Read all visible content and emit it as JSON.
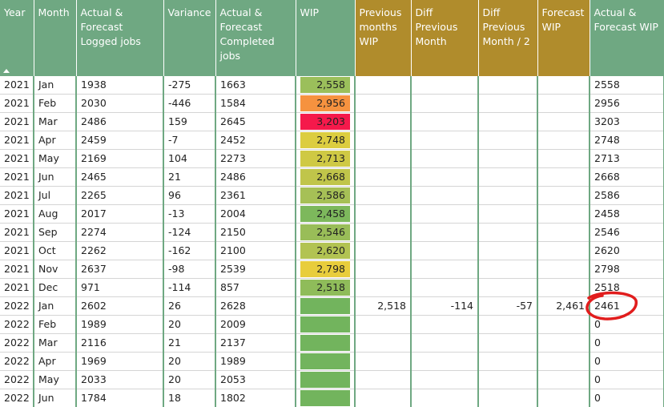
{
  "columns": [
    {
      "key": "year",
      "label": "Year",
      "group": "green"
    },
    {
      "key": "month",
      "label": "Month",
      "group": "green"
    },
    {
      "key": "logged",
      "label": "Actual & Forecast Logged jobs",
      "group": "green"
    },
    {
      "key": "variance",
      "label": "Variance",
      "group": "green"
    },
    {
      "key": "completed",
      "label": "Actual & Forecast Completed jobs",
      "group": "green"
    },
    {
      "key": "wip",
      "label": "WIP",
      "group": "green"
    },
    {
      "key": "prev_wip",
      "label": "Previous months WIP",
      "group": "gold"
    },
    {
      "key": "diff_prev",
      "label": "Diff Previous Month",
      "group": "gold"
    },
    {
      "key": "diff_prev_half",
      "label": "Diff Previous Month / 2",
      "group": "gold"
    },
    {
      "key": "forecast_wip",
      "label": "Forecast WIP",
      "group": "gold"
    },
    {
      "key": "act_fc_wip",
      "label": "Actual & Forecast WIP",
      "group": "green"
    }
  ],
  "colors": {
    "header_green": "#6fa882",
    "header_gold": "#b08c2c",
    "annotation_red": "#e11d1d"
  },
  "rows": [
    {
      "year": "2021",
      "month": "Jan",
      "logged": "1938",
      "variance": "-275",
      "completed": "1663",
      "wip": "2,558",
      "wip_color": "#9bbf5b",
      "prev_wip": "",
      "diff_prev": "",
      "diff_prev_half": "",
      "forecast_wip": "",
      "act_fc_wip": "2558"
    },
    {
      "year": "2021",
      "month": "Feb",
      "logged": "2030",
      "variance": "-446",
      "completed": "1584",
      "wip": "2,956",
      "wip_color": "#f6923f",
      "prev_wip": "",
      "diff_prev": "",
      "diff_prev_half": "",
      "forecast_wip": "",
      "act_fc_wip": "2956"
    },
    {
      "year": "2021",
      "month": "Mar",
      "logged": "2486",
      "variance": "159",
      "completed": "2645",
      "wip": "3,203",
      "wip_color": "#f5194b",
      "prev_wip": "",
      "diff_prev": "",
      "diff_prev_half": "",
      "forecast_wip": "",
      "act_fc_wip": "3203"
    },
    {
      "year": "2021",
      "month": "Apr",
      "logged": "2459",
      "variance": "-7",
      "completed": "2452",
      "wip": "2,748",
      "wip_color": "#dccd40",
      "prev_wip": "",
      "diff_prev": "",
      "diff_prev_half": "",
      "forecast_wip": "",
      "act_fc_wip": "2748"
    },
    {
      "year": "2021",
      "month": "May",
      "logged": "2169",
      "variance": "104",
      "completed": "2273",
      "wip": "2,713",
      "wip_color": "#cfc944",
      "prev_wip": "",
      "diff_prev": "",
      "diff_prev_half": "",
      "forecast_wip": "",
      "act_fc_wip": "2713"
    },
    {
      "year": "2021",
      "month": "Jun",
      "logged": "2465",
      "variance": "21",
      "completed": "2486",
      "wip": "2,668",
      "wip_color": "#c0c54a",
      "prev_wip": "",
      "diff_prev": "",
      "diff_prev_half": "",
      "forecast_wip": "",
      "act_fc_wip": "2668"
    },
    {
      "year": "2021",
      "month": "Jul",
      "logged": "2265",
      "variance": "96",
      "completed": "2361",
      "wip": "2,586",
      "wip_color": "#a6c056",
      "prev_wip": "",
      "diff_prev": "",
      "diff_prev_half": "",
      "forecast_wip": "",
      "act_fc_wip": "2586"
    },
    {
      "year": "2021",
      "month": "Aug",
      "logged": "2017",
      "variance": "-13",
      "completed": "2004",
      "wip": "2,458",
      "wip_color": "#7db85c",
      "prev_wip": "",
      "diff_prev": "",
      "diff_prev_half": "",
      "forecast_wip": "",
      "act_fc_wip": "2458"
    },
    {
      "year": "2021",
      "month": "Sep",
      "logged": "2274",
      "variance": "-124",
      "completed": "2150",
      "wip": "2,546",
      "wip_color": "#99bd58",
      "prev_wip": "",
      "diff_prev": "",
      "diff_prev_half": "",
      "forecast_wip": "",
      "act_fc_wip": "2546"
    },
    {
      "year": "2021",
      "month": "Oct",
      "logged": "2262",
      "variance": "-162",
      "completed": "2100",
      "wip": "2,620",
      "wip_color": "#b2c352",
      "prev_wip": "",
      "diff_prev": "",
      "diff_prev_half": "",
      "forecast_wip": "",
      "act_fc_wip": "2620"
    },
    {
      "year": "2021",
      "month": "Nov",
      "logged": "2637",
      "variance": "-98",
      "completed": "2539",
      "wip": "2,798",
      "wip_color": "#e8cd3c",
      "prev_wip": "",
      "diff_prev": "",
      "diff_prev_half": "",
      "forecast_wip": "",
      "act_fc_wip": "2798"
    },
    {
      "year": "2021",
      "month": "Dec",
      "logged": "971",
      "variance": "-114",
      "completed": "857",
      "wip": "2,518",
      "wip_color": "#8fbc5a",
      "prev_wip": "",
      "diff_prev": "",
      "diff_prev_half": "",
      "forecast_wip": "",
      "act_fc_wip": "2518"
    },
    {
      "year": "2022",
      "month": "Jan",
      "logged": "2602",
      "variance": "26",
      "completed": "2628",
      "wip": "",
      "wip_color": "#72b45d",
      "prev_wip": "2,518",
      "diff_prev": "-114",
      "diff_prev_half": "-57",
      "forecast_wip": "2,461",
      "act_fc_wip": "2461"
    },
    {
      "year": "2022",
      "month": "Feb",
      "logged": "1989",
      "variance": "20",
      "completed": "2009",
      "wip": "",
      "wip_color": "#72b45d",
      "prev_wip": "",
      "diff_prev": "",
      "diff_prev_half": "",
      "forecast_wip": "",
      "act_fc_wip": "0"
    },
    {
      "year": "2022",
      "month": "Mar",
      "logged": "2116",
      "variance": "21",
      "completed": "2137",
      "wip": "",
      "wip_color": "#72b45d",
      "prev_wip": "",
      "diff_prev": "",
      "diff_prev_half": "",
      "forecast_wip": "",
      "act_fc_wip": "0"
    },
    {
      "year": "2022",
      "month": "Apr",
      "logged": "1969",
      "variance": "20",
      "completed": "1989",
      "wip": "",
      "wip_color": "#72b45d",
      "prev_wip": "",
      "diff_prev": "",
      "diff_prev_half": "",
      "forecast_wip": "",
      "act_fc_wip": "0"
    },
    {
      "year": "2022",
      "month": "May",
      "logged": "2033",
      "variance": "20",
      "completed": "2053",
      "wip": "",
      "wip_color": "#72b45d",
      "prev_wip": "",
      "diff_prev": "",
      "diff_prev_half": "",
      "forecast_wip": "",
      "act_fc_wip": "0"
    },
    {
      "year": "2022",
      "month": "Jun",
      "logged": "1784",
      "variance": "18",
      "completed": "1802",
      "wip": "",
      "wip_color": "#72b45d",
      "prev_wip": "",
      "diff_prev": "",
      "diff_prev_half": "",
      "forecast_wip": "",
      "act_fc_wip": "0"
    }
  ]
}
